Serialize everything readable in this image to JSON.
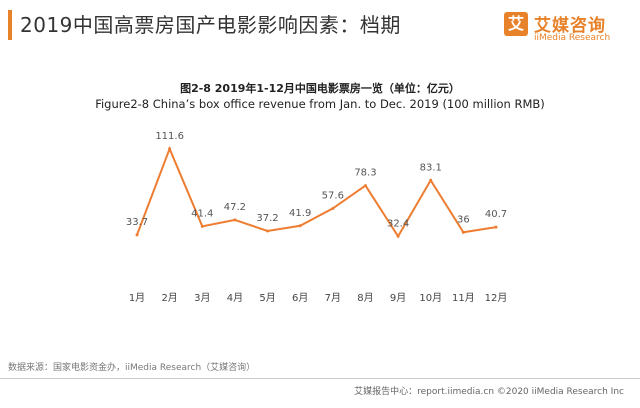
{
  "header": {
    "title": "2019中国高票房国产电影影响因素：档期"
  },
  "logo": {
    "icon_char": "艾",
    "name": "艾媒咨询",
    "sub": "iiMedia Research"
  },
  "colors": {
    "accent": "#e8822a",
    "line": "#ed7d31"
  },
  "chart_data": {
    "type": "line",
    "title": "图2-8 2019年1-12月中国电影票房一览（单位：亿元）",
    "subtitle": "Figure2-8 China’s box office revenue from Jan. to Dec. 2019 (100 million RMB)",
    "categories": [
      "1月",
      "2月",
      "3月",
      "4月",
      "5月",
      "6月",
      "7月",
      "8月",
      "9月",
      "10月",
      "11月",
      "12月"
    ],
    "series": [
      {
        "values": [
          33.7,
          111.6,
          41.4,
          47.2,
          37.2,
          41.9,
          57.6,
          78.3,
          32.4,
          83.1,
          36,
          40.7
        ]
      }
    ],
    "data_labels": [
      "33.7",
      "111.6",
      "41.4",
      "47.2",
      "37.2",
      "41.9",
      "57.6",
      "78.3",
      "32.4",
      "83.1",
      "36",
      "40.7"
    ],
    "ylim": [
      20,
      115
    ],
    "grid": false,
    "legend": "none"
  },
  "source": "数据来源：国家电影资金办，iiMedia Research（艾媒咨询）",
  "footer": "艾媒报告中心：report.iimedia.cn  ©2020  iiMedia Research  Inc"
}
